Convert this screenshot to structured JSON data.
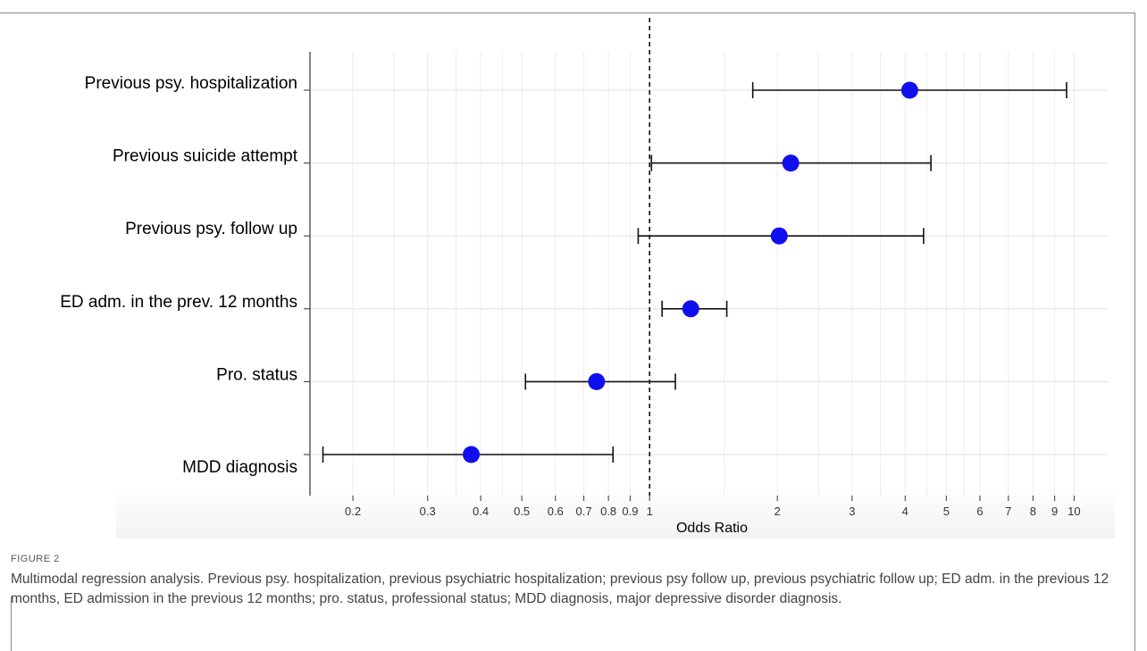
{
  "figure": {
    "label": "FIGURE 2",
    "caption": "Multimodal regression analysis. Previous psy. hospitalization, previous psychiatric hospitalization; previous psy follow up, previous psychiatric follow up; ED adm. in the previous 12 months, ED admission in the previous 12 months; pro. status, professional status; MDD diagnosis, major depressive disorder diagnosis."
  },
  "chart_data": {
    "type": "forest",
    "xlabel": "Odds Ratio",
    "x_scale": "log",
    "xlim": [
      0.16,
      12
    ],
    "reference_line": 1,
    "grid": true,
    "x_ticks": [
      0.2,
      0.3,
      0.4,
      0.5,
      0.6,
      0.7,
      0.8,
      0.9,
      1,
      2,
      3,
      4,
      5,
      6,
      7,
      8,
      9,
      10
    ],
    "x_tick_labels": [
      "0.2",
      "0.3",
      "0.4",
      "0.5",
      "0.6",
      "0.7",
      "0.8",
      "0.9",
      "1",
      "2",
      "3",
      "4",
      "5",
      "6",
      "7",
      "8",
      "9",
      "10"
    ],
    "point_color": "#1010ee",
    "rows": [
      {
        "label": "Previous psy. hospitalization",
        "or": 4.1,
        "lower": 1.75,
        "upper": 9.6
      },
      {
        "label": "Previous suicide attempt",
        "or": 2.15,
        "lower": 1.01,
        "upper": 4.6
      },
      {
        "label": "Previous psy. follow up",
        "or": 2.02,
        "lower": 0.94,
        "upper": 4.42
      },
      {
        "label": "ED adm. in the prev. 12 months",
        "or": 1.25,
        "lower": 1.07,
        "upper": 1.52
      },
      {
        "label": "Pro. status",
        "or": 0.75,
        "lower": 0.51,
        "upper": 1.15
      },
      {
        "label": "MDD diagnosis",
        "or": 0.38,
        "lower": 0.17,
        "upper": 0.82
      }
    ]
  }
}
